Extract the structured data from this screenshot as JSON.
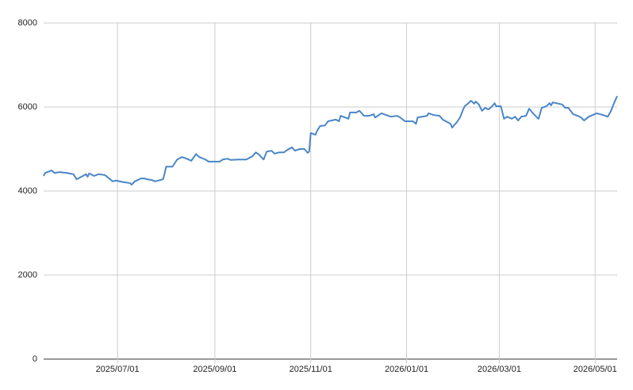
{
  "chart_data": {
    "type": "line",
    "x": [
      "2025/05/15",
      "2025/05/16",
      "2025/05/20",
      "2025/05/22",
      "2025/05/25",
      "2025/05/30",
      "2025/06/03",
      "2025/06/05",
      "2025/06/08",
      "2025/06/11",
      "2025/06/12",
      "2025/06/13",
      "2025/06/16",
      "2025/06/19",
      "2025/06/23",
      "2025/06/25",
      "2025/06/28",
      "2025/06/30",
      "2025/07/05",
      "2025/07/09",
      "2025/07/10",
      "2025/07/12",
      "2025/07/16",
      "2025/07/18",
      "2025/07/20",
      "2025/07/23",
      "2025/07/25",
      "2025/07/30",
      "2025/07/31",
      "2025/08/01",
      "2025/08/05",
      "2025/08/08",
      "2025/08/11",
      "2025/08/14",
      "2025/08/17",
      "2025/08/20",
      "2025/08/22",
      "2025/08/26",
      "2025/08/28",
      "2025/09/01",
      "2025/09/04",
      "2025/09/06",
      "2025/09/09",
      "2025/09/11",
      "2025/09/16",
      "2025/09/21",
      "2025/09/25",
      "2025/09/27",
      "2025/09/29",
      "2025/10/02",
      "2025/10/04",
      "2025/10/07",
      "2025/10/09",
      "2025/10/12",
      "2025/10/15",
      "2025/10/17",
      "2025/10/20",
      "2025/10/22",
      "2025/10/25",
      "2025/10/28",
      "2025/10/30",
      "2025/10/31",
      "2025/11/01",
      "2025/11/04",
      "2025/11/05",
      "2025/11/07",
      "2025/11/10",
      "2025/11/12",
      "2025/11/17",
      "2025/11/19",
      "2025/11/20",
      "2025/11/23",
      "2025/11/25",
      "2025/11/26",
      "2025/11/30",
      "2025/12/02",
      "2025/12/05",
      "2025/12/08",
      "2025/12/11",
      "2025/12/12",
      "2025/12/16",
      "2025/12/22",
      "2025/12/26",
      "2025/12/28",
      "2025/12/31",
      "2026/01/05",
      "2026/01/07",
      "2026/01/08",
      "2026/01/14",
      "2026/01/15",
      "2026/01/18",
      "2026/01/22",
      "2026/01/24",
      "2026/01/26",
      "2026/01/29",
      "2026/01/30",
      "2026/02/02",
      "2026/02/04",
      "2026/02/06",
      "2026/02/07",
      "2026/02/09",
      "2026/02/11",
      "2026/02/13",
      "2026/02/14",
      "2026/02/16",
      "2026/02/18",
      "2026/02/20",
      "2026/02/22",
      "2026/02/24",
      "2026/02/26",
      "2026/02/27",
      "2026/03/02",
      "2026/03/04",
      "2026/03/06",
      "2026/03/09",
      "2026/03/11",
      "2026/03/13",
      "2026/03/15",
      "2026/03/18",
      "2026/03/20",
      "2026/03/22",
      "2026/03/25",
      "2026/03/26",
      "2026/03/28",
      "2026/03/31",
      "2026/04/02",
      "2026/04/03",
      "2026/04/04",
      "2026/04/10",
      "2026/04/12",
      "2026/04/14",
      "2026/04/17",
      "2026/04/20",
      "2026/04/22",
      "2026/04/24",
      "2026/04/27",
      "2026/05/02",
      "2026/05/06",
      "2026/05/09",
      "2026/05/11",
      "2026/05/13",
      "2026/05/15"
    ],
    "series": [
      {
        "color": "#4a86c8",
        "values": [
          4360,
          4430,
          4490,
          4430,
          4450,
          4430,
          4400,
          4280,
          4340,
          4400,
          4340,
          4420,
          4360,
          4400,
          4380,
          4320,
          4230,
          4250,
          4210,
          4190,
          4150,
          4230,
          4300,
          4300,
          4280,
          4260,
          4230,
          4280,
          4420,
          4580,
          4580,
          4750,
          4810,
          4770,
          4720,
          4880,
          4810,
          4750,
          4700,
          4700,
          4700,
          4750,
          4770,
          4740,
          4750,
          4750,
          4830,
          4920,
          4870,
          4750,
          4940,
          4960,
          4890,
          4920,
          4920,
          4980,
          5040,
          4960,
          5000,
          5000,
          4910,
          4940,
          5380,
          5340,
          5430,
          5550,
          5560,
          5660,
          5700,
          5660,
          5790,
          5750,
          5720,
          5870,
          5870,
          5910,
          5790,
          5790,
          5830,
          5750,
          5850,
          5770,
          5790,
          5750,
          5660,
          5660,
          5600,
          5750,
          5790,
          5850,
          5810,
          5790,
          5700,
          5660,
          5600,
          5510,
          5640,
          5750,
          5940,
          6020,
          6080,
          6150,
          6080,
          6130,
          6060,
          5910,
          5980,
          5940,
          6000,
          6090,
          6020,
          6020,
          5720,
          5770,
          5720,
          5770,
          5680,
          5770,
          5790,
          5960,
          5870,
          5750,
          5720,
          5980,
          6020,
          6090,
          6040,
          6110,
          6060,
          5980,
          5980,
          5830,
          5790,
          5750,
          5680,
          5770,
          5850,
          5810,
          5770,
          5900,
          6090,
          6260
        ]
      }
    ],
    "xlim": [
      "2025/05/15",
      "2026/05/15"
    ],
    "xticks": [
      "2025/07/01",
      "2025/09/01",
      "2025/11/01",
      "2026/01/01",
      "2026/03/01",
      "2026/05/01"
    ],
    "ylim": [
      0,
      8000
    ],
    "yticks": [
      0,
      2000,
      4000,
      6000,
      8000
    ],
    "grid": true
  }
}
